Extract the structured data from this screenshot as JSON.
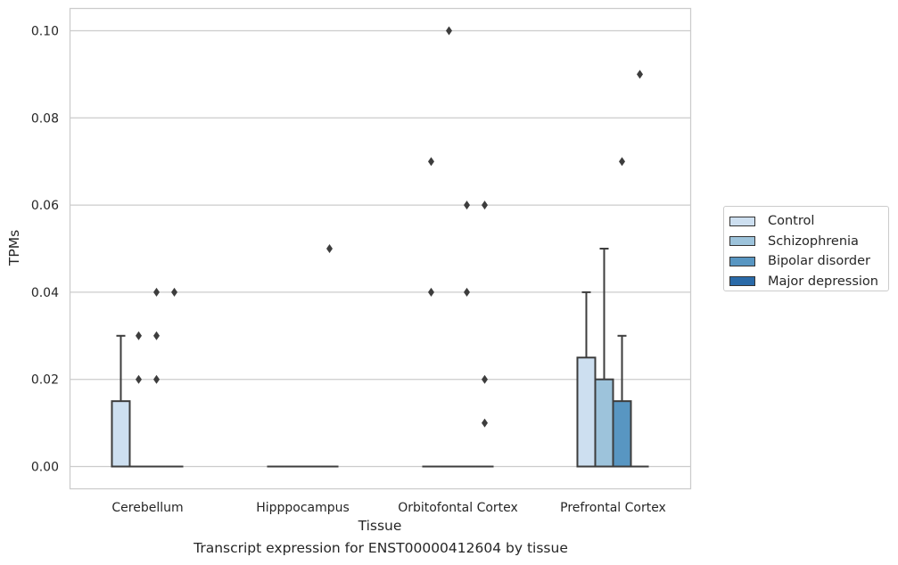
{
  "chart_data": {
    "type": "box",
    "xlabel": "Tissue",
    "ylabel": "TPMs",
    "ylim": [
      -0.005,
      0.105
    ],
    "yticks": [
      0.0,
      0.02,
      0.04,
      0.06,
      0.08,
      0.1
    ],
    "ytick_labels": [
      "0.00",
      "0.02",
      "0.04",
      "0.06",
      "0.08",
      "0.10"
    ],
    "grid": true,
    "legend_position": "right",
    "categories": [
      "Cerebellum",
      "Hipppocampus",
      "Orbitofontal Cortex",
      "Prefrontal Cortex"
    ],
    "series": [
      {
        "name": "Control",
        "color": "#cddff0",
        "boxes": [
          {
            "q1": 0.0,
            "median": 0.0,
            "q3": 0.015,
            "whisker_low": 0.0,
            "whisker_high": 0.03,
            "outliers": []
          },
          {
            "q1": 0.0,
            "median": 0.0,
            "q3": 0.0,
            "whisker_low": 0.0,
            "whisker_high": 0.0,
            "outliers": []
          },
          {
            "q1": 0.0,
            "median": 0.0,
            "q3": 0.0,
            "whisker_low": 0.0,
            "whisker_high": 0.0,
            "outliers": [
              0.04,
              0.07
            ]
          },
          {
            "q1": 0.0,
            "median": 0.0,
            "q3": 0.025,
            "whisker_low": 0.0,
            "whisker_high": 0.04,
            "outliers": []
          }
        ]
      },
      {
        "name": "Schizophrenia",
        "color": "#9dc3db",
        "boxes": [
          {
            "q1": 0.0,
            "median": 0.0,
            "q3": 0.0,
            "whisker_low": 0.0,
            "whisker_high": 0.0,
            "outliers": [
              0.02,
              0.03
            ]
          },
          {
            "q1": 0.0,
            "median": 0.0,
            "q3": 0.0,
            "whisker_low": 0.0,
            "whisker_high": 0.0,
            "outliers": []
          },
          {
            "q1": 0.0,
            "median": 0.0,
            "q3": 0.0,
            "whisker_low": 0.0,
            "whisker_high": 0.0,
            "outliers": [
              0.1
            ]
          },
          {
            "q1": 0.0,
            "median": 0.0,
            "q3": 0.02,
            "whisker_low": 0.0,
            "whisker_high": 0.05,
            "outliers": []
          }
        ]
      },
      {
        "name": "Bipolar disorder",
        "color": "#5896c2",
        "boxes": [
          {
            "q1": 0.0,
            "median": 0.0,
            "q3": 0.0,
            "whisker_low": 0.0,
            "whisker_high": 0.0,
            "outliers": [
              0.02,
              0.03,
              0.04
            ]
          },
          {
            "q1": 0.0,
            "median": 0.0,
            "q3": 0.0,
            "whisker_low": 0.0,
            "whisker_high": 0.0,
            "outliers": []
          },
          {
            "q1": 0.0,
            "median": 0.0,
            "q3": 0.0,
            "whisker_low": 0.0,
            "whisker_high": 0.0,
            "outliers": [
              0.04,
              0.06
            ]
          },
          {
            "q1": 0.0,
            "median": 0.0,
            "q3": 0.015,
            "whisker_low": 0.0,
            "whisker_high": 0.03,
            "outliers": [
              0.07
            ]
          }
        ]
      },
      {
        "name": "Major depression",
        "color": "#2a6aa8",
        "boxes": [
          {
            "q1": 0.0,
            "median": 0.0,
            "q3": 0.0,
            "whisker_low": 0.0,
            "whisker_high": 0.0,
            "outliers": [
              0.04
            ]
          },
          {
            "q1": 0.0,
            "median": 0.0,
            "q3": 0.0,
            "whisker_low": 0.0,
            "whisker_high": 0.0,
            "outliers": [
              0.05
            ]
          },
          {
            "q1": 0.0,
            "median": 0.0,
            "q3": 0.0,
            "whisker_low": 0.0,
            "whisker_high": 0.0,
            "outliers": [
              0.01,
              0.02,
              0.06
            ]
          },
          {
            "q1": 0.0,
            "median": 0.0,
            "q3": 0.0,
            "whisker_low": 0.0,
            "whisker_high": 0.0,
            "outliers": [
              0.09
            ]
          }
        ]
      }
    ],
    "caption": "Transcript expression for ENST00000412604 by tissue"
  }
}
